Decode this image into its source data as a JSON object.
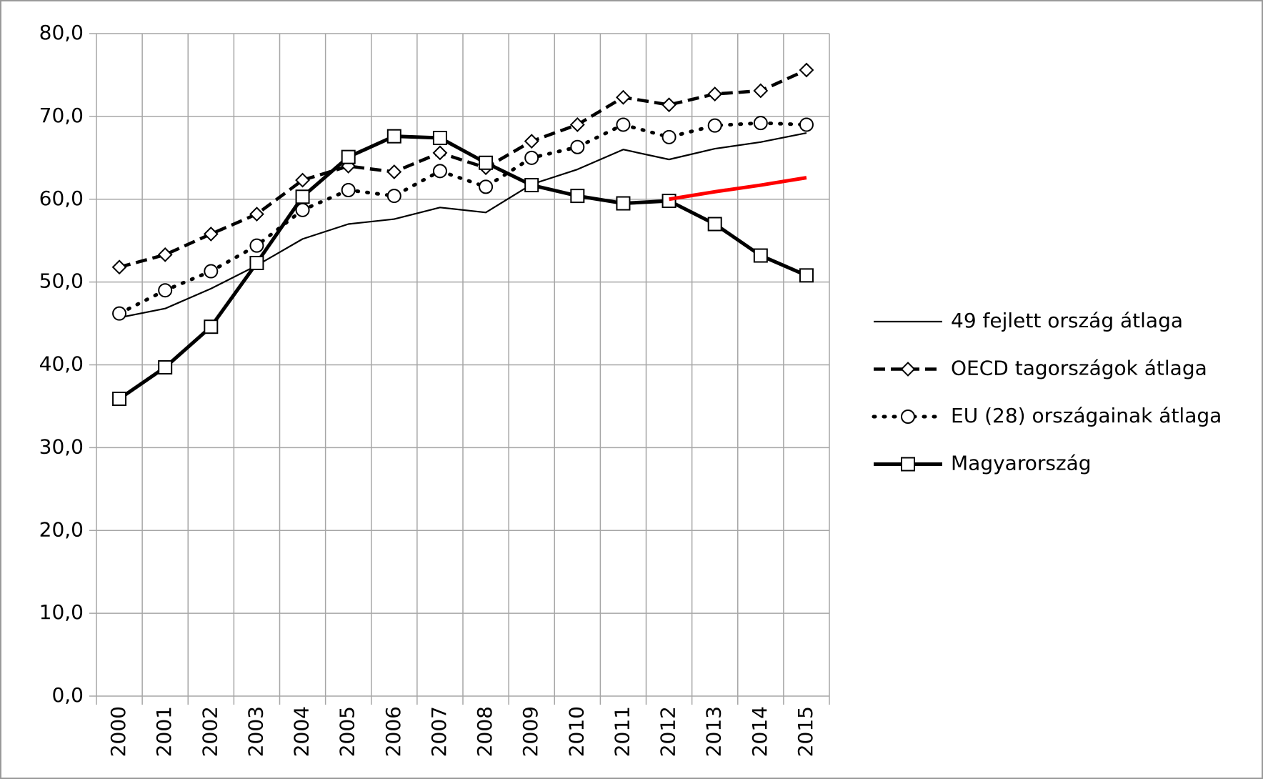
{
  "chart_data": {
    "type": "line",
    "categories": [
      "2000",
      "2001",
      "2002",
      "2003",
      "2004",
      "2005",
      "2006",
      "2007",
      "2008",
      "2009",
      "2010",
      "2011",
      "2012",
      "2013",
      "2014",
      "2015"
    ],
    "series": [
      {
        "name": "49 fejlett ország átlaga",
        "color": "#000000",
        "line_style": "solid",
        "marker": "none",
        "values": [
          45.7,
          46.8,
          49.2,
          52.0,
          55.2,
          57.0,
          57.6,
          59.0,
          58.4,
          61.8,
          63.6,
          66.0,
          64.8,
          66.1,
          66.9,
          68.0
        ]
      },
      {
        "name": "OECD tagországok átlaga",
        "color": "#000000",
        "line_style": "dashed",
        "marker": "diamond",
        "values": [
          51.8,
          53.3,
          55.8,
          58.2,
          62.3,
          64.0,
          63.3,
          65.6,
          63.8,
          67.0,
          69.0,
          72.3,
          71.4,
          72.7,
          73.1,
          75.6
        ]
      },
      {
        "name": "EU (28) országainak átlaga",
        "color": "#000000",
        "line_style": "dotted",
        "marker": "circle",
        "values": [
          46.2,
          49.0,
          51.3,
          54.4,
          58.7,
          61.1,
          60.4,
          63.4,
          61.5,
          65.0,
          66.3,
          69.0,
          67.5,
          68.9,
          69.2,
          69.0
        ]
      },
      {
        "name": "Magyarország",
        "color": "#000000",
        "line_style": "thick",
        "marker": "square",
        "values": [
          35.9,
          39.7,
          44.6,
          52.3,
          60.3,
          65.1,
          67.6,
          67.4,
          64.4,
          61.7,
          60.4,
          59.5,
          59.8,
          57.0,
          53.2,
          50.8
        ]
      },
      {
        "color": "#ff0000",
        "line_style": "thick",
        "marker": "none",
        "values": [
          null,
          null,
          null,
          null,
          null,
          null,
          null,
          null,
          null,
          null,
          null,
          null,
          60.0,
          60.9,
          61.7,
          62.6
        ]
      }
    ],
    "ylim": [
      0,
      80
    ],
    "yticks": [
      {
        "value": 0,
        "label": "0,0"
      },
      {
        "value": 10,
        "label": "10,0"
      },
      {
        "value": 20,
        "label": "20,0"
      },
      {
        "value": 30,
        "label": "30,0"
      },
      {
        "value": 40,
        "label": "40,0"
      },
      {
        "value": 50,
        "label": "50,0"
      },
      {
        "value": 60,
        "label": "60,0"
      },
      {
        "value": 70,
        "label": "70,0"
      },
      {
        "value": 80,
        "label": "80,0"
      }
    ],
    "grid": true,
    "legend": "right"
  }
}
